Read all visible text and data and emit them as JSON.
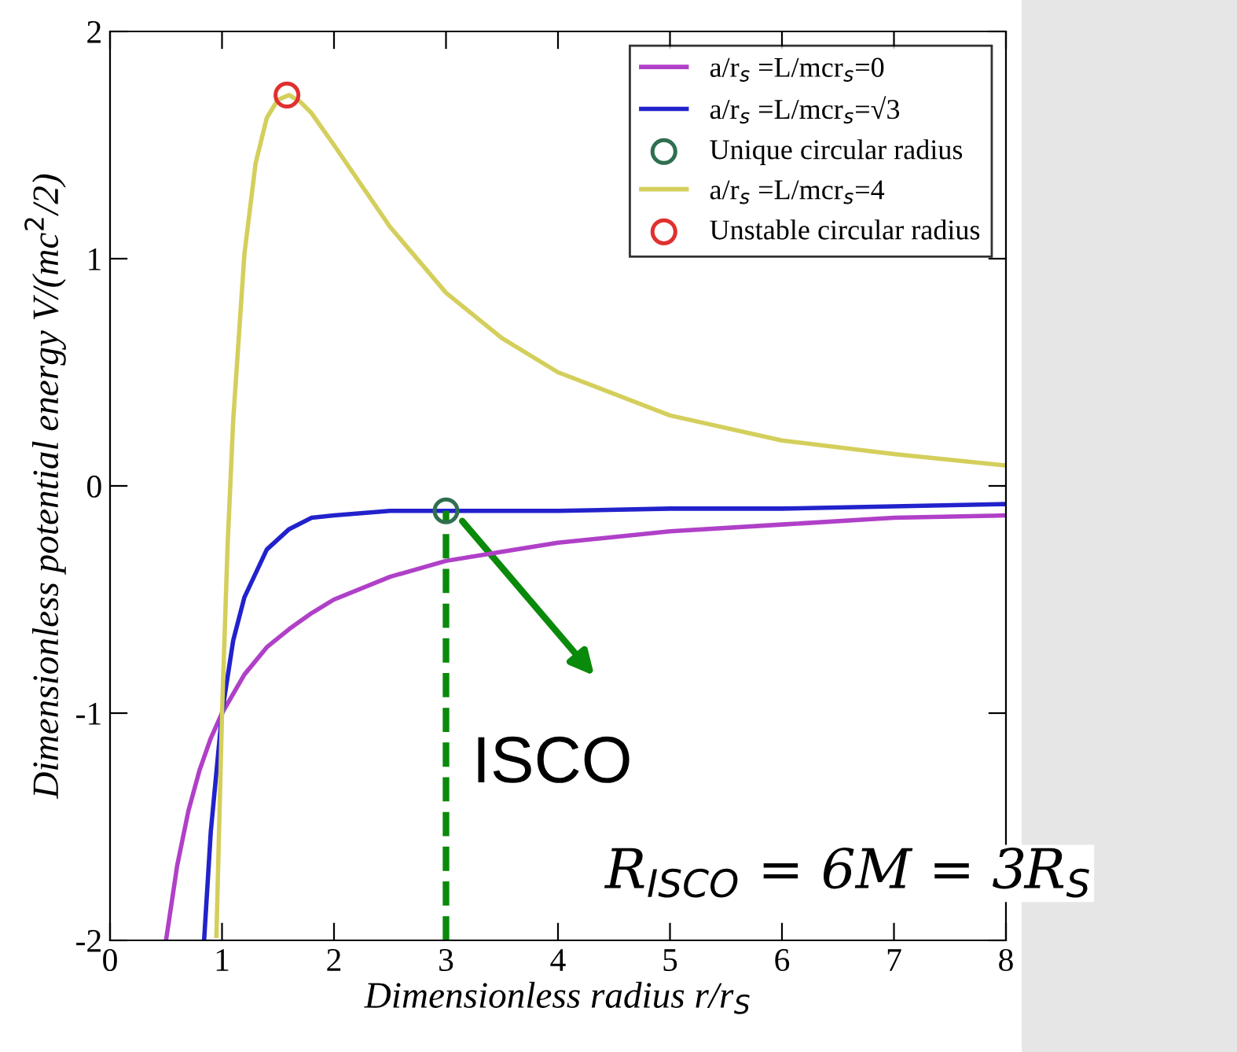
{
  "chart_data": {
    "type": "line",
    "xlabel": "Dimensionless radius r/r$_{S}$",
    "ylabel": "Dimensionless potential energy V/(mc$^{2}$/2)",
    "xlim": [
      0,
      8
    ],
    "ylim": [
      -2,
      2
    ],
    "xticks": [
      0,
      1,
      2,
      3,
      4,
      5,
      6,
      7,
      8
    ],
    "yticks": [
      -2,
      -1,
      0,
      1,
      2
    ],
    "grid": false,
    "legend": "top right",
    "series": [
      {
        "name": "a/r$_{s}$ =L/mcr$_{s}$=0",
        "color": "#b040c8",
        "x": [
          0.5,
          0.6,
          0.7,
          0.8,
          0.9,
          1,
          1.2,
          1.4,
          1.6,
          1.8,
          2,
          2.5,
          3,
          3.5,
          4,
          5,
          6,
          7,
          8
        ],
        "values": [
          -2,
          -1.67,
          -1.43,
          -1.25,
          -1.11,
          -1,
          -0.83,
          -0.71,
          -0.63,
          -0.56,
          -0.5,
          -0.4,
          -0.33,
          -0.29,
          -0.25,
          -0.2,
          -0.17,
          -0.14,
          -0.13
        ]
      },
      {
        "name": "a/r$_{s}$ =L/mcr$_{s}$=√3",
        "color": "#2222cc",
        "x": [
          0.84,
          0.9,
          1,
          1.1,
          1.2,
          1.4,
          1.6,
          1.8,
          2,
          2.5,
          3,
          3.5,
          4,
          5,
          6,
          7,
          8
        ],
        "values": [
          -2,
          -1.52,
          -1,
          -0.68,
          -0.49,
          -0.28,
          -0.19,
          -0.14,
          -0.13,
          -0.11,
          -0.11,
          -0.11,
          -0.11,
          -0.1,
          -0.1,
          -0.09,
          -0.08
        ]
      },
      {
        "name": "Unique circular radius",
        "type": "scatter",
        "marker": "circle",
        "color": "#2f6f4f",
        "x": [
          3
        ],
        "values": [
          -0.11
        ]
      },
      {
        "name": "a/r$_{s}$ =L/mcr$_{s}$=4",
        "color": "#d4cf5c",
        "x": [
          0.95,
          1,
          1.05,
          1.1,
          1.2,
          1.3,
          1.4,
          1.5,
          1.6,
          1.7,
          1.8,
          2,
          2.5,
          3,
          3.5,
          4,
          5,
          6,
          7,
          8
        ],
        "values": [
          -1.98,
          -1,
          -0.26,
          0.29,
          1.02,
          1.42,
          1.62,
          1.7,
          1.72,
          1.69,
          1.64,
          1.5,
          1.14,
          0.85,
          0.65,
          0.5,
          0.31,
          0.2,
          0.14,
          0.09
        ]
      },
      {
        "name": "Unstable circular radius",
        "type": "scatter",
        "marker": "circle",
        "color": "#e03030",
        "x": [
          1.58
        ],
        "values": [
          1.72
        ]
      }
    ],
    "ref_lines": [
      {
        "axis": "x",
        "value": 3,
        "color": "#0a8a0a",
        "line_style": "dashed"
      }
    ],
    "annotations": [
      {
        "text": "ISCO",
        "x": 3,
        "y": -1.23
      },
      "R$_{ISCO}$ = 6M = 3R$_{S}$"
    ]
  }
}
